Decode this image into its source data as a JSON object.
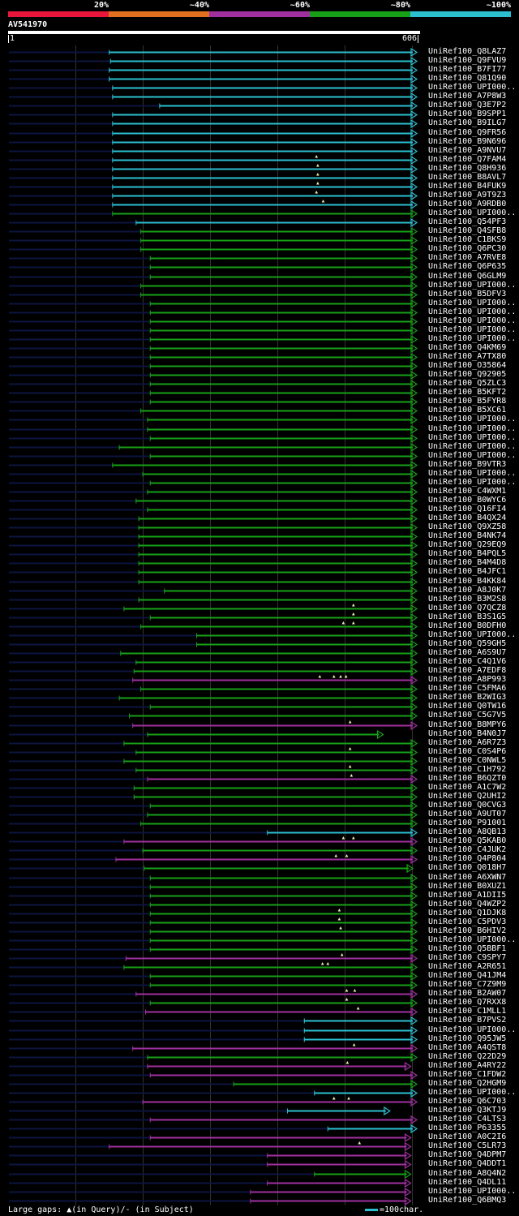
{
  "legend": {
    "items": [
      {
        "label": "20%",
        "color": "#e8163a"
      },
      {
        "label": "~40%",
        "color": "#e07020"
      },
      {
        "label": "~60%",
        "color": "#a030a0"
      },
      {
        "label": "~80%",
        "color": "#17a017"
      },
      {
        "label": "~100%",
        "color": "#2bbfd0"
      }
    ]
  },
  "query": {
    "id": "AV541970",
    "start": "1",
    "end": "606",
    "length": 606
  },
  "colors": {
    "c": "#2bbfd0",
    "g": "#17a017",
    "p": "#a030a0",
    "o": "#e07020",
    "r": "#e8163a",
    "shadow": "#0d1540",
    "grid": "#333333",
    "gap_marker": "#f2f2b0"
  },
  "hits": [
    {
      "label": "UniRef100_Q8LAZ7",
      "s": 150,
      "e": 606,
      "c": "c"
    },
    {
      "label": "UniRef100_Q9FVU9",
      "s": 152,
      "e": 606,
      "c": "c"
    },
    {
      "label": "UniRef100_B7FI77",
      "s": 150,
      "e": 606,
      "c": "c"
    },
    {
      "label": "UniRef100_Q81Q90",
      "s": 150,
      "e": 606,
      "c": "c"
    },
    {
      "label": "UniRef100_UPI000..",
      "s": 155,
      "e": 606,
      "c": "c"
    },
    {
      "label": "UniRef100_A7P8W3",
      "s": 155,
      "e": 606,
      "c": "c"
    },
    {
      "label": "UniRef100_Q3E7P2",
      "s": 225,
      "e": 606,
      "c": "c"
    },
    {
      "label": "UniRef100_B9SPP1",
      "s": 155,
      "e": 606,
      "c": "c"
    },
    {
      "label": "UniRef100_B9ILG7",
      "s": 155,
      "e": 606,
      "c": "c"
    },
    {
      "label": "UniRef100_Q9FR56",
      "s": 155,
      "e": 606,
      "c": "c"
    },
    {
      "label": "UniRef100_B9N696",
      "s": 155,
      "e": 606,
      "c": "c"
    },
    {
      "label": "UniRef100_A9NVU7",
      "s": 155,
      "e": 606,
      "c": "c"
    },
    {
      "label": "UniRef100_Q7FAM4",
      "s": 155,
      "e": 606,
      "c": "c",
      "gaps": [
        458
      ]
    },
    {
      "label": "UniRef100_Q8H936",
      "s": 155,
      "e": 606,
      "c": "c",
      "gaps": [
        460
      ]
    },
    {
      "label": "UniRef100_B8AVL7",
      "s": 155,
      "e": 606,
      "c": "c",
      "gaps": [
        460
      ]
    },
    {
      "label": "UniRef100_B4FUK9",
      "s": 155,
      "e": 606,
      "c": "c",
      "gaps": [
        460
      ]
    },
    {
      "label": "UniRef100_A9T9Z3",
      "s": 155,
      "e": 606,
      "c": "c",
      "gaps": [
        458
      ]
    },
    {
      "label": "UniRef100_A9RDB0",
      "s": 155,
      "e": 606,
      "c": "c",
      "gaps": [
        468
      ]
    },
    {
      "label": "UniRef100_UPI000..",
      "s": 155,
      "e": 606,
      "c": "g"
    },
    {
      "label": "UniRef100_Q54PF3",
      "s": 190,
      "e": 606,
      "c": "c"
    },
    {
      "label": "UniRef100_Q4SFB8",
      "s": 197,
      "e": 606,
      "c": "g"
    },
    {
      "label": "UniRef100_C1BKS9",
      "s": 197,
      "e": 606,
      "c": "g"
    },
    {
      "label": "UniRef100_Q6PC30",
      "s": 197,
      "e": 606,
      "c": "g"
    },
    {
      "label": "UniRef100_A7RVE8",
      "s": 211,
      "e": 606,
      "c": "g"
    },
    {
      "label": "UniRef100_Q6P635",
      "s": 211,
      "e": 606,
      "c": "g"
    },
    {
      "label": "UniRef100_Q6GLM9",
      "s": 211,
      "e": 606,
      "c": "g"
    },
    {
      "label": "UniRef100_UPI000..",
      "s": 197,
      "e": 606,
      "c": "g"
    },
    {
      "label": "UniRef100_B5DFV3",
      "s": 197,
      "e": 606,
      "c": "g"
    },
    {
      "label": "UniRef100_UPI000..",
      "s": 211,
      "e": 606,
      "c": "g"
    },
    {
      "label": "UniRef100_UPI000..",
      "s": 211,
      "e": 606,
      "c": "g"
    },
    {
      "label": "UniRef100_UPI000..",
      "s": 211,
      "e": 606,
      "c": "g"
    },
    {
      "label": "UniRef100_UPI000..",
      "s": 211,
      "e": 606,
      "c": "g"
    },
    {
      "label": "UniRef100_UPI000..",
      "s": 211,
      "e": 606,
      "c": "g"
    },
    {
      "label": "UniRef100_Q4KM69",
      "s": 211,
      "e": 606,
      "c": "g"
    },
    {
      "label": "UniRef100_A7TX80",
      "s": 211,
      "e": 606,
      "c": "g"
    },
    {
      "label": "UniRef100_O35864",
      "s": 211,
      "e": 606,
      "c": "g"
    },
    {
      "label": "UniRef100_Q92905",
      "s": 211,
      "e": 606,
      "c": "g"
    },
    {
      "label": "UniRef100_Q5ZLC3",
      "s": 211,
      "e": 606,
      "c": "g"
    },
    {
      "label": "UniRef100_B5KFT2",
      "s": 211,
      "e": 606,
      "c": "g"
    },
    {
      "label": "UniRef100_B5FYR8",
      "s": 211,
      "e": 606,
      "c": "g"
    },
    {
      "label": "UniRef100_B5XC61",
      "s": 197,
      "e": 606,
      "c": "g"
    },
    {
      "label": "UniRef100_UPI000..",
      "s": 207,
      "e": 606,
      "c": "g"
    },
    {
      "label": "UniRef100_UPI000..",
      "s": 207,
      "e": 606,
      "c": "g"
    },
    {
      "label": "UniRef100_UPI000..",
      "s": 211,
      "e": 606,
      "c": "g"
    },
    {
      "label": "UniRef100_UPI000..",
      "s": 165,
      "e": 606,
      "c": "g"
    },
    {
      "label": "UniRef100_UPI000..",
      "s": 211,
      "e": 606,
      "c": "g"
    },
    {
      "label": "UniRef100_B9VTR3",
      "s": 155,
      "e": 606,
      "c": "g"
    },
    {
      "label": "UniRef100_UPI000..",
      "s": 200,
      "e": 606,
      "c": "g"
    },
    {
      "label": "UniRef100_UPI000..",
      "s": 211,
      "e": 606,
      "c": "g"
    },
    {
      "label": "UniRef100_C4WXM1",
      "s": 207,
      "e": 606,
      "c": "g"
    },
    {
      "label": "UniRef100_B0WYC6",
      "s": 190,
      "e": 606,
      "c": "g"
    },
    {
      "label": "UniRef100_Q16FI4",
      "s": 207,
      "e": 606,
      "c": "g"
    },
    {
      "label": "UniRef100_B4QX24",
      "s": 194,
      "e": 606,
      "c": "g"
    },
    {
      "label": "UniRef100_Q9XZ58",
      "s": 194,
      "e": 606,
      "c": "g"
    },
    {
      "label": "UniRef100_B4NK74",
      "s": 194,
      "e": 606,
      "c": "g"
    },
    {
      "label": "UniRef100_Q29EQ9",
      "s": 194,
      "e": 606,
      "c": "g"
    },
    {
      "label": "UniRef100_B4PQL5",
      "s": 194,
      "e": 606,
      "c": "g"
    },
    {
      "label": "UniRef100_B4M4D8",
      "s": 194,
      "e": 606,
      "c": "g"
    },
    {
      "label": "UniRef100_B4JFC1",
      "s": 194,
      "e": 606,
      "c": "g"
    },
    {
      "label": "UniRef100_B4KK84",
      "s": 194,
      "e": 606,
      "c": "g"
    },
    {
      "label": "UniRef100_A8J0K7",
      "s": 232,
      "e": 606,
      "c": "g"
    },
    {
      "label": "UniRef100_B3M2S8",
      "s": 194,
      "e": 606,
      "c": "g"
    },
    {
      "label": "UniRef100_Q7QCZ8",
      "s": 172,
      "e": 606,
      "c": "g",
      "gaps": [
        513
      ]
    },
    {
      "label": "UniRef100_B3S1G5",
      "s": 211,
      "e": 606,
      "c": "g",
      "gaps": [
        513
      ]
    },
    {
      "label": "UniRef100_B0DFH0",
      "s": 197,
      "e": 606,
      "c": "g",
      "gaps": [
        498,
        513
      ]
    },
    {
      "label": "UniRef100_UPI000..",
      "s": 280,
      "e": 606,
      "c": "g"
    },
    {
      "label": "UniRef100_Q59GH5",
      "s": 280,
      "e": 606,
      "c": "g"
    },
    {
      "label": "UniRef100_A6S9U7",
      "s": 167,
      "e": 606,
      "c": "g"
    },
    {
      "label": "UniRef100_C4Q1V6",
      "s": 190,
      "e": 606,
      "c": "g"
    },
    {
      "label": "UniRef100_A7EDF8",
      "s": 187,
      "e": 606,
      "c": "g"
    },
    {
      "label": "UniRef100_A8P993",
      "s": 185,
      "e": 606,
      "c": "p",
      "gaps": [
        463,
        484,
        494,
        502
      ]
    },
    {
      "label": "UniRef100_C5FMA6",
      "s": 197,
      "e": 606,
      "c": "g"
    },
    {
      "label": "UniRef100_B2WIG3",
      "s": 165,
      "e": 606,
      "c": "g"
    },
    {
      "label": "UniRef100_Q0TW16",
      "s": 211,
      "e": 606,
      "c": "g"
    },
    {
      "label": "UniRef100_C5G7V5",
      "s": 180,
      "e": 606,
      "c": "g"
    },
    {
      "label": "UniRef100_B8MPY6",
      "s": 185,
      "e": 606,
      "c": "p",
      "gaps": [
        508
      ]
    },
    {
      "label": "UniRef100_B4N0J7",
      "s": 207,
      "e": 556,
      "c": "g"
    },
    {
      "label": "UniRef100_A6R7Z3",
      "s": 172,
      "e": 606,
      "c": "g"
    },
    {
      "label": "UniRef100_C0S4P6",
      "s": 190,
      "e": 606,
      "c": "g",
      "gaps": [
        508
      ]
    },
    {
      "label": "UniRef100_C0NWL5",
      "s": 172,
      "e": 606,
      "c": "g"
    },
    {
      "label": "UniRef100_C1H792",
      "s": 190,
      "e": 606,
      "c": "g",
      "gaps": [
        508
      ]
    },
    {
      "label": "UniRef100_B6QZT0",
      "s": 207,
      "e": 606,
      "c": "p",
      "gaps": [
        510
      ]
    },
    {
      "label": "UniRef100_A1C7W2",
      "s": 187,
      "e": 606,
      "c": "g"
    },
    {
      "label": "UniRef100_Q2UHI2",
      "s": 187,
      "e": 606,
      "c": "g"
    },
    {
      "label": "UniRef100_Q0CVG3",
      "s": 211,
      "e": 606,
      "c": "g"
    },
    {
      "label": "UniRef100_A9UT07",
      "s": 207,
      "e": 606,
      "c": "g"
    },
    {
      "label": "UniRef100_P91001",
      "s": 197,
      "e": 606,
      "c": "g"
    },
    {
      "label": "UniRef100_A8QB13",
      "s": 385,
      "e": 606,
      "c": "c"
    },
    {
      "label": "UniRef100_Q5KAB0",
      "s": 172,
      "e": 606,
      "c": "p",
      "gaps": [
        498,
        513
      ]
    },
    {
      "label": "UniRef100_C4JUK2",
      "s": 200,
      "e": 606,
      "c": "g"
    },
    {
      "label": "UniRef100_Q4P804",
      "s": 160,
      "e": 606,
      "c": "p",
      "gaps": [
        487,
        503
      ]
    },
    {
      "label": "UniRef100_Q018H7",
      "s": 202,
      "e": 600,
      "c": "g"
    },
    {
      "label": "UniRef100_A6XWN7",
      "s": 211,
      "e": 606,
      "c": "g"
    },
    {
      "label": "UniRef100_B0XUZ1",
      "s": 211,
      "e": 606,
      "c": "g"
    },
    {
      "label": "UniRef100_A1DII5",
      "s": 211,
      "e": 606,
      "c": "g"
    },
    {
      "label": "UniRef100_Q4WZP2",
      "s": 211,
      "e": 606,
      "c": "g"
    },
    {
      "label": "UniRef100_Q1DJK8",
      "s": 211,
      "e": 606,
      "c": "g",
      "gaps": [
        492
      ]
    },
    {
      "label": "UniRef100_C5PDV3",
      "s": 211,
      "e": 606,
      "c": "g",
      "gaps": [
        492
      ]
    },
    {
      "label": "UniRef100_B6HIV2",
      "s": 211,
      "e": 606,
      "c": "g",
      "gaps": [
        494
      ]
    },
    {
      "label": "UniRef100_UPI000..",
      "s": 211,
      "e": 606,
      "c": "g"
    },
    {
      "label": "UniRef100_Q5BBF1",
      "s": 211,
      "e": 606,
      "c": "g"
    },
    {
      "label": "UniRef100_C9SPY7",
      "s": 175,
      "e": 606,
      "c": "p",
      "gaps": [
        496
      ]
    },
    {
      "label": "UniRef100_A2R651",
      "s": 172,
      "e": 606,
      "c": "g",
      "gaps": [
        467,
        475
      ]
    },
    {
      "label": "UniRef100_Q41JM4",
      "s": 211,
      "e": 606,
      "c": "g"
    },
    {
      "label": "UniRef100_C7Z9M9",
      "s": 211,
      "e": 606,
      "c": "g"
    },
    {
      "label": "UniRef100_B2AW07",
      "s": 190,
      "e": 606,
      "c": "p",
      "gaps": [
        503,
        515
      ]
    },
    {
      "label": "UniRef100_Q7RXX8",
      "s": 211,
      "e": 606,
      "c": "g",
      "gaps": [
        503
      ]
    },
    {
      "label": "UniRef100_C1MLL1",
      "s": 204,
      "e": 606,
      "c": "p",
      "gaps": [
        520
      ]
    },
    {
      "label": "UniRef100_B7PVS2",
      "s": 440,
      "e": 606,
      "c": "c"
    },
    {
      "label": "UniRef100_UPI000..",
      "s": 440,
      "e": 606,
      "c": "c"
    },
    {
      "label": "UniRef100_Q95JW5",
      "s": 440,
      "e": 606,
      "c": "c"
    },
    {
      "label": "UniRef100_A4QST8",
      "s": 185,
      "e": 606,
      "c": "p",
      "gaps": [
        514
      ]
    },
    {
      "label": "UniRef100_Q22D29",
      "s": 207,
      "e": 606,
      "c": "g"
    },
    {
      "label": "UniRef100_A4RY22",
      "s": 207,
      "e": 597,
      "c": "p",
      "gaps": [
        504
      ]
    },
    {
      "label": "UniRef100_C1FDW2",
      "s": 211,
      "e": 606,
      "c": "p"
    },
    {
      "label": "UniRef100_Q2HGM9",
      "s": 335,
      "e": 606,
      "c": "g"
    },
    {
      "label": "UniRef100_UPI000..",
      "s": 455,
      "e": 606,
      "c": "c"
    },
    {
      "label": "UniRef100_Q6C703",
      "s": 200,
      "e": 606,
      "c": "p",
      "gaps": [
        484,
        506
      ]
    },
    {
      "label": "UniRef100_Q3KTJ9",
      "s": 415,
      "e": 566,
      "c": "c"
    },
    {
      "label": "UniRef100_C4LTS3",
      "s": 211,
      "e": 606,
      "c": "p"
    },
    {
      "label": "UniRef100_P63355",
      "s": 475,
      "e": 606,
      "c": "c"
    },
    {
      "label": "UniRef100_A0C2I6",
      "s": 211,
      "e": 597,
      "c": "p"
    },
    {
      "label": "UniRef100_C5LR73",
      "s": 150,
      "e": 597,
      "c": "p",
      "gaps": [
        522
      ]
    },
    {
      "label": "UniRef100_Q4DPM7",
      "s": 385,
      "e": 597,
      "c": "p"
    },
    {
      "label": "UniRef100_Q4DDT1",
      "s": 385,
      "e": 597,
      "c": "p"
    },
    {
      "label": "UniRef100_A8Q4N2",
      "s": 455,
      "e": 597,
      "c": "g"
    },
    {
      "label": "UniRef100_Q4DL11",
      "s": 385,
      "e": 597,
      "c": "p"
    },
    {
      "label": "UniRef100_UPI000..",
      "s": 360,
      "e": 597,
      "c": "p"
    },
    {
      "label": "UniRef100_Q6BMQ3",
      "s": 360,
      "e": 597,
      "c": "p"
    }
  ],
  "footer": {
    "gaps_text": "Large gaps: ▲(in Query)/- (in Subject)",
    "scale_text": "=100char."
  }
}
